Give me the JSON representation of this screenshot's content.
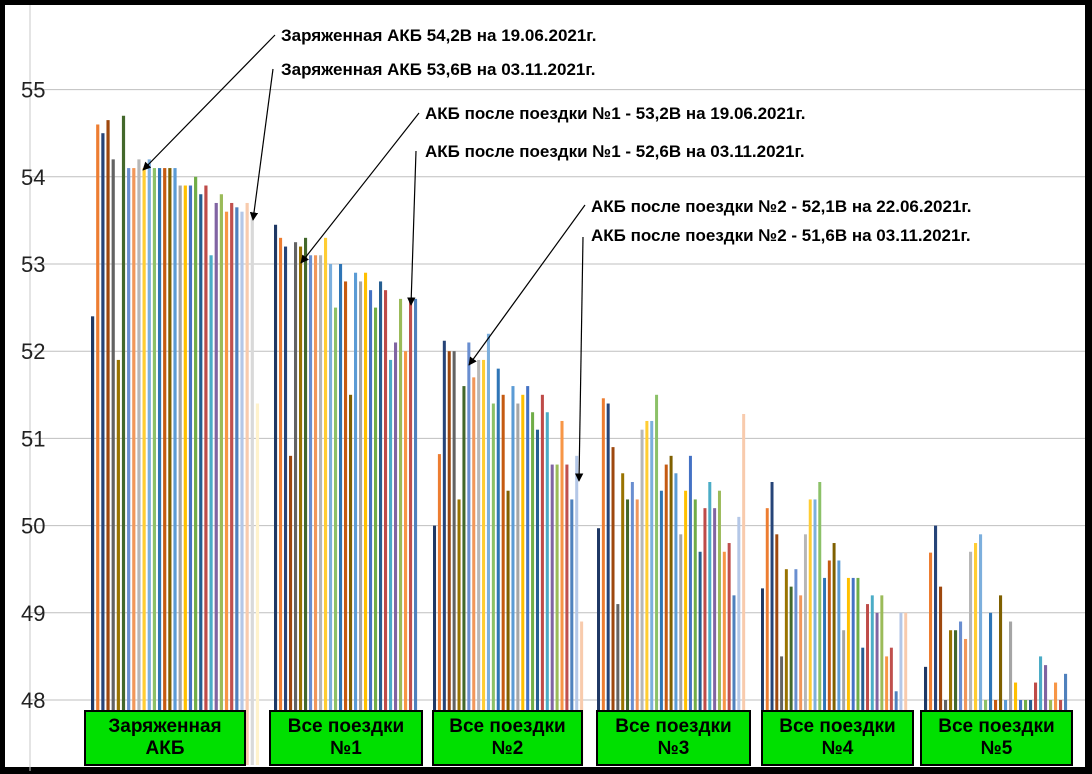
{
  "chart_data": {
    "type": "bar",
    "ylim": [
      48,
      55.5
    ],
    "yticks": [
      "48",
      "49",
      "50",
      "51",
      "52",
      "53",
      "54",
      "55"
    ],
    "grid": true,
    "categories": [
      {
        "label": "Заряженная\nАКБ",
        "values": [
          52.4,
          54.6,
          54.5,
          54.65,
          54.2,
          51.9,
          54.7,
          54.1,
          54.1,
          54.2,
          54.1,
          54.2,
          54.1,
          54.1,
          54.1,
          54.1,
          54.1,
          53.9,
          53.9,
          53.9,
          54.0,
          53.8,
          53.9,
          53.1,
          53.7,
          53.8,
          53.6,
          53.7,
          53.65,
          53.6,
          53.7,
          53.6,
          51.4
        ]
      },
      {
        "label": "Все поездки\n№1",
        "values": [
          53.45,
          53.3,
          53.2,
          50.8,
          53.25,
          53.2,
          53.3,
          53.1,
          53.1,
          53.1,
          53.3,
          53.0,
          52.5,
          53.0,
          52.8,
          51.5,
          52.9,
          52.8,
          52.9,
          52.7,
          52.5,
          52.8,
          52.7,
          51.9,
          52.1,
          52.6,
          52.0,
          52.6,
          52.6
        ]
      },
      {
        "label": "Все поездки\n№2",
        "values": [
          50.0,
          50.82,
          52.12,
          52.0,
          52.0,
          50.3,
          51.6,
          52.1,
          51.7,
          51.9,
          51.9,
          52.2,
          51.4,
          51.8,
          51.5,
          50.4,
          51.6,
          51.4,
          51.5,
          51.6,
          51.3,
          51.1,
          51.5,
          51.3,
          50.7,
          50.7,
          51.2,
          50.7,
          50.3,
          50.8,
          48.9
        ]
      },
      {
        "label": "Все поездки\n№3",
        "values": [
          49.97,
          51.46,
          51.4,
          50.9,
          49.1,
          50.6,
          50.3,
          50.5,
          50.3,
          51.1,
          51.2,
          51.2,
          51.5,
          50.4,
          50.7,
          50.8,
          50.6,
          49.9,
          50.4,
          50.8,
          50.3,
          49.7,
          50.2,
          50.5,
          50.2,
          50.4,
          49.7,
          49.8,
          49.2,
          50.1,
          51.28
        ]
      },
      {
        "label": "Все поездки\n№4",
        "values": [
          49.28,
          50.2,
          50.5,
          49.9,
          48.5,
          49.5,
          49.3,
          49.5,
          49.2,
          49.9,
          50.3,
          50.3,
          50.5,
          49.4,
          49.6,
          49.8,
          49.6,
          48.8,
          49.4,
          49.4,
          49.4,
          48.6,
          49.1,
          49.2,
          49.0,
          49.2,
          48.5,
          48.6,
          48.1,
          49.0,
          49.0
        ]
      },
      {
        "label": "Все поездки\n№5",
        "values": [
          48.38,
          49.69,
          50.0,
          49.3,
          48.0,
          48.8,
          48.8,
          48.9,
          48.7,
          49.7,
          49.8,
          49.9,
          48.0,
          49.0,
          48.0,
          49.2,
          48.0,
          48.9,
          48.2,
          48.0,
          48.0,
          48.0,
          48.2,
          48.5,
          48.4,
          48.0,
          48.2,
          48.0,
          48.3
        ]
      }
    ],
    "colors": [
      "#1f3864",
      "#ed7d31",
      "#264478",
      "#9e480e",
      "#636363",
      "#997300",
      "#43682b",
      "#698ed0",
      "#f1975a",
      "#b7b7b7",
      "#ffcd33",
      "#7cafdd",
      "#8cc168",
      "#2e75b6",
      "#c55a11",
      "#7f6000",
      "#5b9bd5",
      "#a5a5a5",
      "#ffc000",
      "#4472c4",
      "#70ad47",
      "#255e91",
      "#be4b48",
      "#4bacc6",
      "#8064a2",
      "#9bbb59",
      "#f79646",
      "#c0504d",
      "#4f81bd",
      "#b4c7e7",
      "#f8cbad",
      "#d9d9d9",
      "#fff2cc",
      "#deebf7",
      "#e2f0d9",
      "#fce4d6",
      "#d5a6bd",
      "#b4a7d6",
      "#a2c4c9"
    ],
    "annotations": [
      {
        "text": "Заряженная АКБ 54,2В на 19.06.2021г."
      },
      {
        "text": "Заряженная АКБ 53,6В на 03.11.2021г."
      },
      {
        "text": "АКБ после поездки №1 - 53,2В на 19.06.2021г."
      },
      {
        "text": "АКБ после поездки №1 - 52,6В на 03.11.2021г."
      },
      {
        "text": "АКБ после поездки №2 - 52,1В на 22.06.2021г."
      },
      {
        "text": "АКБ после поездки №2 - 51,6В на 03.11.2021г."
      }
    ]
  }
}
